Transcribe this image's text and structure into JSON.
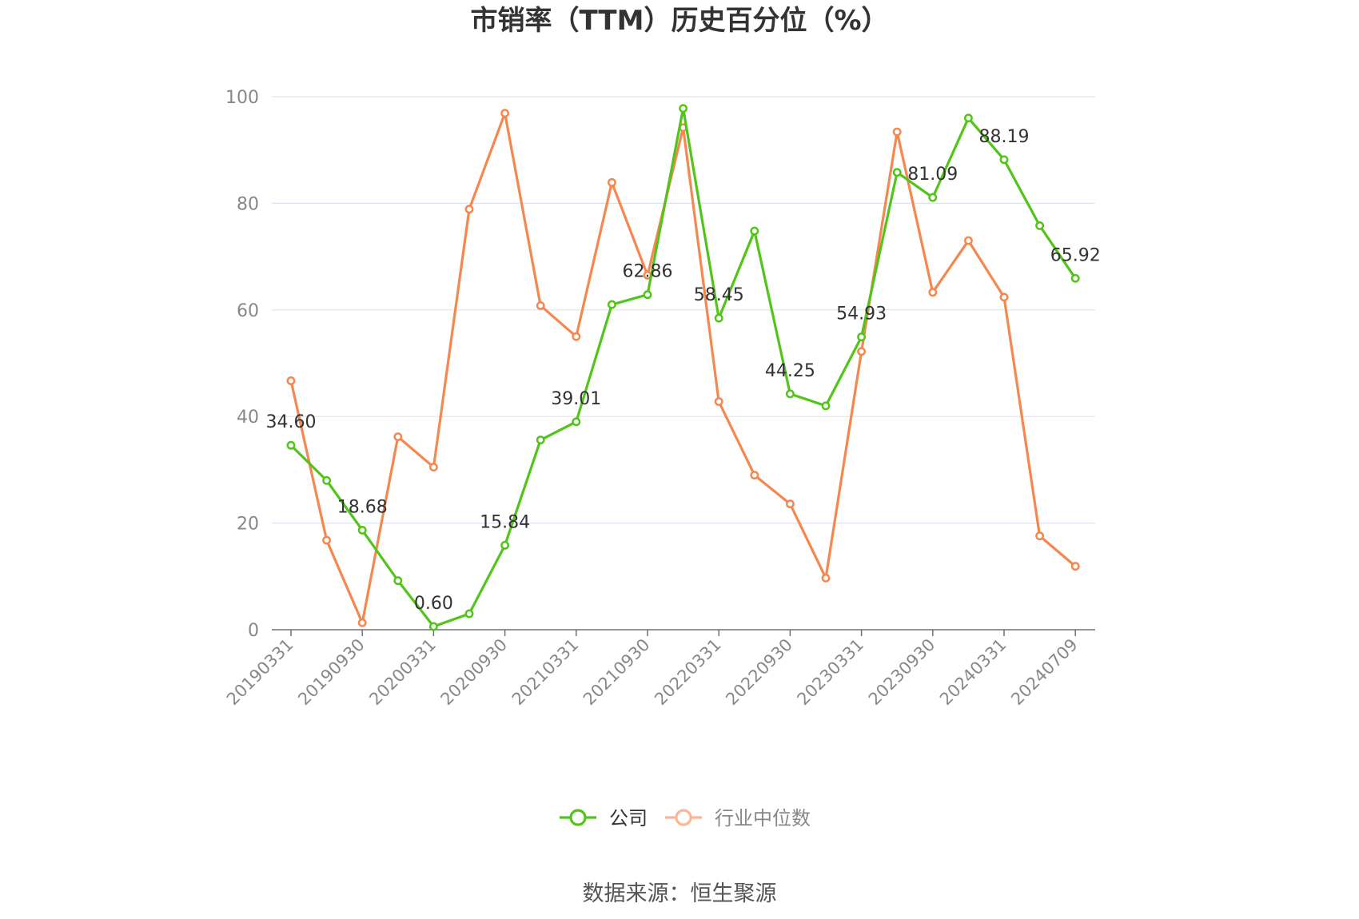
{
  "chart_data": {
    "type": "line",
    "title": "市销率（TTM）历史百分位（%）",
    "xlabel": "",
    "ylabel": "",
    "ylim": [
      0,
      100
    ],
    "yticks": [
      0,
      20,
      40,
      60,
      80,
      100
    ],
    "grid": true,
    "legend_position": "bottom-center",
    "x": [
      "20190331",
      "20190630",
      "20190930",
      "20191231",
      "20200331",
      "20200630",
      "20200930",
      "20201231",
      "20210331",
      "20210630",
      "20210930",
      "20211231",
      "20220331",
      "20220630",
      "20220930",
      "20221231",
      "20230331",
      "20230630",
      "20230930",
      "20231231",
      "20240331",
      "20240630",
      "20240709"
    ],
    "x_tick_labels": [
      "20190331",
      "20190930",
      "20200331",
      "20200930",
      "20210331",
      "20210930",
      "20220331",
      "20220930",
      "20230331",
      "20230930",
      "20240331",
      "20240709"
    ],
    "series": [
      {
        "name": "公司",
        "color": "#52c41a",
        "values": [
          34.6,
          28.0,
          18.68,
          9.2,
          0.6,
          3.0,
          15.84,
          35.6,
          39.01,
          61.0,
          62.86,
          97.8,
          58.45,
          74.8,
          44.25,
          42.0,
          54.93,
          85.8,
          81.09,
          96.0,
          88.19,
          75.8,
          65.92
        ],
        "labels": [
          "34.60",
          null,
          "18.68",
          null,
          "0.60",
          null,
          "15.84",
          null,
          "39.01",
          null,
          "62.86",
          null,
          "58.45",
          null,
          "44.25",
          null,
          "54.93",
          null,
          "81.09",
          null,
          "88.19",
          null,
          "65.92"
        ]
      },
      {
        "name": "行业中位数",
        "color": "#f5874f",
        "values": [
          46.7,
          16.8,
          1.3,
          36.2,
          30.5,
          78.9,
          96.9,
          60.8,
          55.0,
          83.9,
          66.5,
          94.2,
          42.8,
          29.0,
          23.6,
          9.7,
          52.2,
          93.4,
          63.3,
          73.0,
          62.4,
          17.6,
          11.9
        ]
      }
    ]
  },
  "legend": {
    "items": [
      {
        "label": "公司",
        "color": "#52c41a",
        "text_color": "#333333"
      },
      {
        "label": "行业中位数",
        "color": "#f5874f",
        "text_color": "#888888"
      }
    ]
  },
  "source": "数据来源：恒生聚源"
}
